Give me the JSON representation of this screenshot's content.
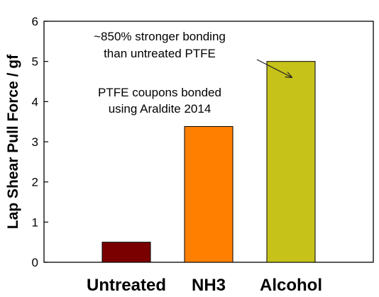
{
  "chart_data": {
    "type": "bar",
    "categories": [
      "Untreated",
      "NH3",
      "Alcohol"
    ],
    "values": [
      0.5,
      3.38,
      5.0
    ],
    "colors": [
      "#7a0000",
      "#ff8000",
      "#c6c21a"
    ],
    "ylabel": "Lap Shear Pull Force / gf",
    "ylim": [
      0,
      6
    ],
    "yticks": [
      "0",
      "1",
      "2",
      "3",
      "4",
      "5",
      "6"
    ],
    "grid": false,
    "annotations": {
      "stronger_line1": "~850% stronger bonding",
      "stronger_line2": "than untreated PTFE",
      "ptfe_line1": "PTFE coupons bonded",
      "ptfe_line2": "using Araldite 2014"
    }
  }
}
